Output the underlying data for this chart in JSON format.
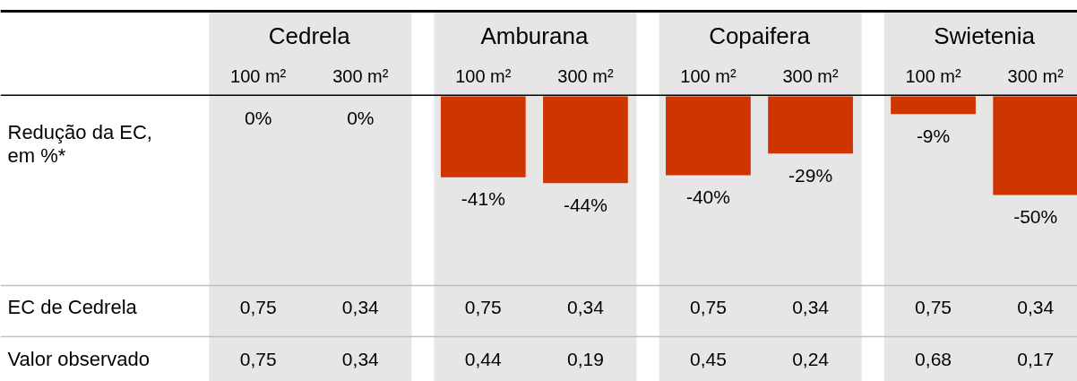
{
  "chart_data": {
    "type": "bar",
    "ylabel": "Redução da EC, em %*",
    "categories": [
      "100 m²",
      "300 m²",
      "100 m²",
      "300 m²",
      "100 m²",
      "300 m²",
      "100 m²",
      "300 m²"
    ],
    "values": [
      0,
      0,
      -41,
      -44,
      -40,
      -29,
      -9,
      -50
    ],
    "value_labels": [
      "0%",
      "0%",
      "-41%",
      "-44%",
      "-40%",
      "-29%",
      "-9%",
      "-50%"
    ],
    "color": "#cf3500",
    "annotations": [
      "Cedrela",
      "Amburana",
      "Copaifera",
      "Swietenia",
      "EC de Cedrela",
      "0,75",
      "0,34",
      "0,75",
      "0,34",
      "0,75",
      "0,34",
      "0,75",
      "0,34",
      "Valor observado",
      "0,75",
      "0,34",
      "0,44",
      "0,19",
      "0,45",
      "0,24",
      "0,68",
      "0,17"
    ],
    "grid": false
  }
}
